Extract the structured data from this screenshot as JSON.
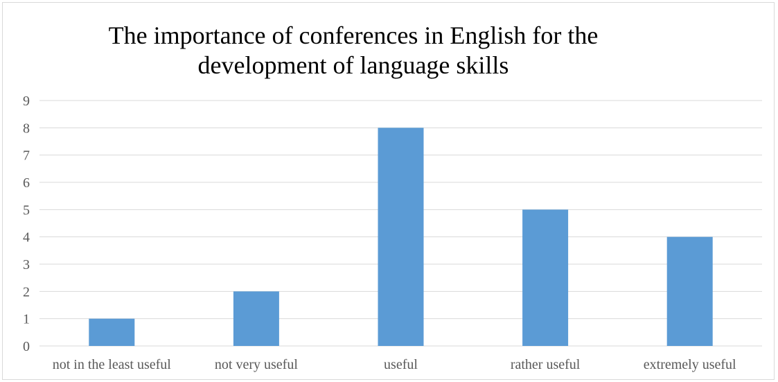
{
  "chart_data": {
    "type": "bar",
    "title_lines": [
      "The importance of conferences in English for the",
      "development of language skills"
    ],
    "categories": [
      "not in the least useful",
      "not very useful",
      "useful",
      "rather useful",
      "extremely useful"
    ],
    "values": [
      1,
      2,
      8,
      5,
      4
    ],
    "xlabel": "",
    "ylabel": "",
    "ylim": [
      0,
      9
    ],
    "y_ticks": [
      "0",
      "1",
      "2",
      "3",
      "4",
      "5",
      "6",
      "7",
      "8",
      "9"
    ],
    "grid": true,
    "legend": "none",
    "bar_color": "#5b9bd5",
    "grid_color": "#d9d9d9"
  }
}
